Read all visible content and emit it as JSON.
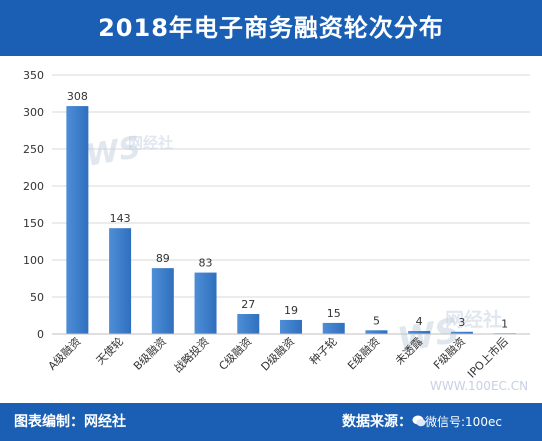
{
  "header": {
    "title": "2018年电子商务融资轮次分布"
  },
  "footer": {
    "compiler": "图表编制：网经社",
    "source_label": "数据来源：",
    "source_value": "微信号:100ec",
    "watermark_site": "WWW.100EC.CN"
  },
  "watermark": {
    "brand": "网经社",
    "logo_text": "WS"
  },
  "colors": {
    "header_bg": "#1a5fb4",
    "bar": "#4f8ed6",
    "bar_dark": "#2f6fbe",
    "grid": "#d9d9d9"
  },
  "chart_data": {
    "type": "bar",
    "title": "2018年电子商务融资轮次分布",
    "xlabel": "",
    "ylabel": "",
    "categories": [
      "A级融资",
      "天使轮",
      "B级融资",
      "战略投资",
      "C级融资",
      "D级融资",
      "种子轮",
      "E级融资",
      "未透露",
      "F级融资",
      "IPO上市后"
    ],
    "values": [
      308,
      143,
      89,
      83,
      27,
      19,
      15,
      5,
      4,
      3,
      1
    ],
    "ylim": [
      0,
      350
    ],
    "yticks": [
      0,
      50,
      100,
      150,
      200,
      250,
      300,
      350
    ],
    "grid": true,
    "legend": "none"
  }
}
